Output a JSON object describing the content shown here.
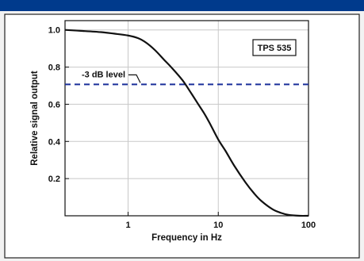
{
  "chart_data": {
    "type": "line",
    "title": "",
    "xlabel": "Frequency in Hz",
    "ylabel": "Relative signal output",
    "x_scale": "log",
    "xlim": [
      0.2,
      100
    ],
    "ylim": [
      0,
      1.05
    ],
    "x_ticks": [
      1,
      10,
      100
    ],
    "x_tick_labels": [
      "1",
      "10",
      "100"
    ],
    "y_ticks": [
      0.2,
      0.4,
      0.6,
      0.8,
      1.0
    ],
    "y_tick_labels": [
      "0.2",
      "0.4",
      "0.6",
      "0.8",
      "1.0"
    ],
    "grid": true,
    "legend": "TPS 535",
    "series": [
      {
        "x": [
          0.2,
          0.3,
          0.5,
          0.7,
          1.0,
          1.3,
          1.6,
          2.0,
          2.5,
          3.0,
          4.0,
          5.0,
          6.0,
          7.0,
          8.0,
          10.0,
          12.0,
          15.0,
          20.0,
          25.0,
          30.0,
          40.0,
          50.0,
          60.0,
          80.0,
          100.0
        ],
        "y": [
          1.0,
          0.995,
          0.988,
          0.98,
          0.97,
          0.955,
          0.93,
          0.89,
          0.84,
          0.8,
          0.73,
          0.66,
          0.6,
          0.55,
          0.5,
          0.41,
          0.35,
          0.27,
          0.18,
          0.12,
          0.08,
          0.035,
          0.015,
          0.005,
          0.0,
          0.0
        ],
        "color": "#111111"
      }
    ],
    "reference_line": {
      "y": 0.707,
      "label": "-3 dB level",
      "color": "#1a2f9a",
      "style": "dashed"
    }
  }
}
